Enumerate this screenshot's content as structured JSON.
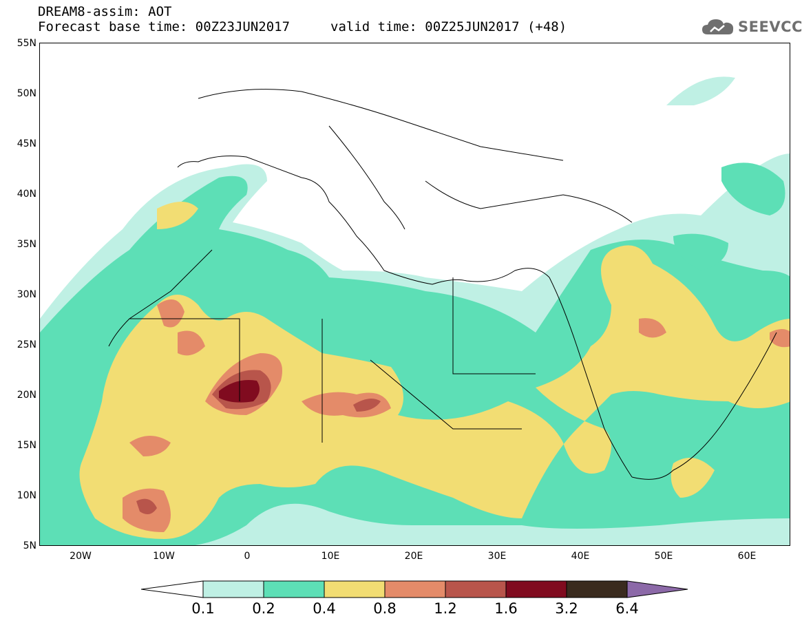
{
  "header": {
    "line1": "DREAM8-assim: AOT",
    "line2_base": "Forecast base time: 00Z23JUN2017",
    "line2_valid": "valid time: 00Z25JUN2017 (+48)"
  },
  "logo": {
    "text": "SEEVCCC",
    "icon": "cloud-icon"
  },
  "axes": {
    "lat_labels": [
      "55N",
      "50N",
      "45N",
      "40N",
      "35N",
      "30N",
      "25N",
      "20N",
      "15N",
      "10N",
      "5N"
    ],
    "lon_labels": [
      "20W",
      "10W",
      "0",
      "10E",
      "20E",
      "30E",
      "40E",
      "50E",
      "60E"
    ],
    "lat_range": [
      5,
      55
    ],
    "lon_range": [
      -25,
      65
    ]
  },
  "colorbar": {
    "labels": [
      "0.1",
      "0.2",
      "0.4",
      "0.8",
      "1.2",
      "1.6",
      "3.2",
      "6.4"
    ],
    "colors": [
      "#ffffff",
      "#bff0e4",
      "#5ddfb6",
      "#f2dd73",
      "#e48b69",
      "#b8554b",
      "#800b1f",
      "#3a2b1e",
      "#8c69a8"
    ]
  }
}
